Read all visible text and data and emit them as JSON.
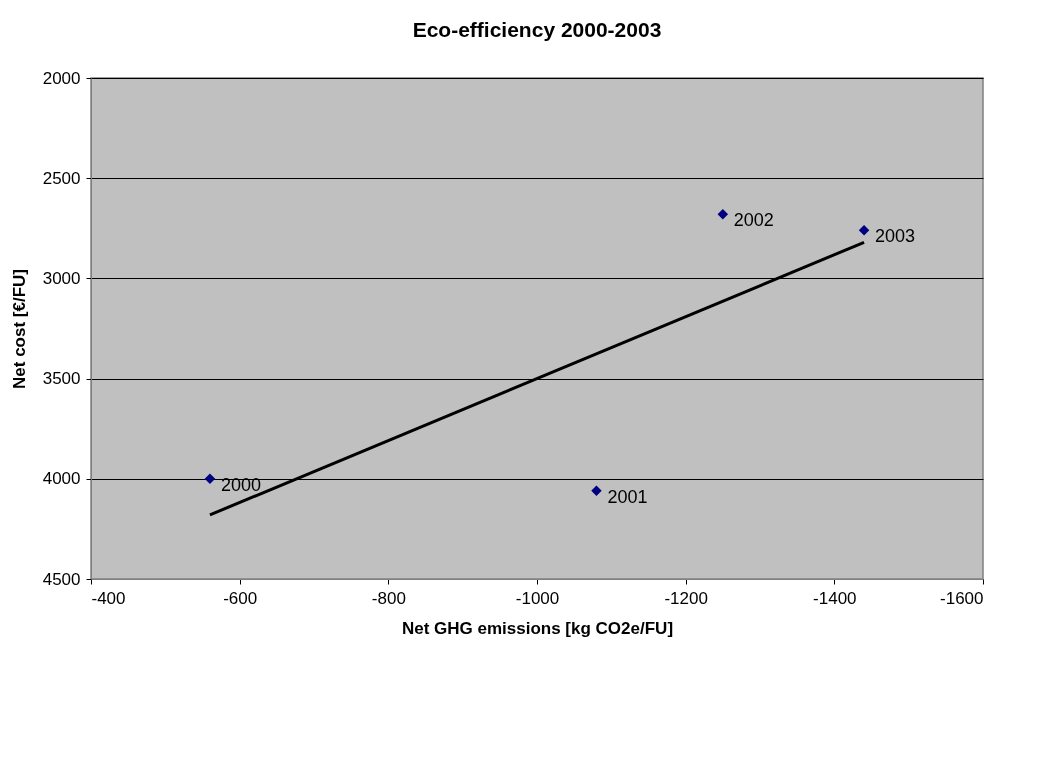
{
  "chart_data": {
    "type": "scatter",
    "title": "Eco-efficiency 2000-2003",
    "xlabel": "Net GHG emissions [kg CO2e/FU]",
    "ylabel": "Net cost [€/FU]",
    "series": [
      {
        "type": "scatter",
        "color": "#000080",
        "marker": "diamond",
        "x": [
          -560,
          -1080,
          -1250,
          -1440
        ],
        "values": [
          4000,
          4060,
          2680,
          2760
        ]
      },
      {
        "type": "line",
        "color": "#000000",
        "line_style": "solid",
        "x": [
          -560,
          -1440
        ],
        "values": [
          4180,
          2820
        ]
      }
    ],
    "annotations": [
      {
        "text": "2000",
        "x": -560,
        "y": 4000
      },
      {
        "text": "2001",
        "x": -1080,
        "y": 4060
      },
      {
        "text": "2002",
        "x": -1250,
        "y": 2680
      },
      {
        "text": "2003",
        "x": -1440,
        "y": 2760
      }
    ],
    "xlim": [
      -400,
      -1600
    ],
    "xticks": [
      -400,
      -600,
      -800,
      -1000,
      -1200,
      -1400,
      -1600
    ],
    "ylim": [
      4500,
      2000
    ],
    "yticks": [
      2000,
      2500,
      3000,
      3500,
      4000,
      4500
    ],
    "grid": "y"
  }
}
